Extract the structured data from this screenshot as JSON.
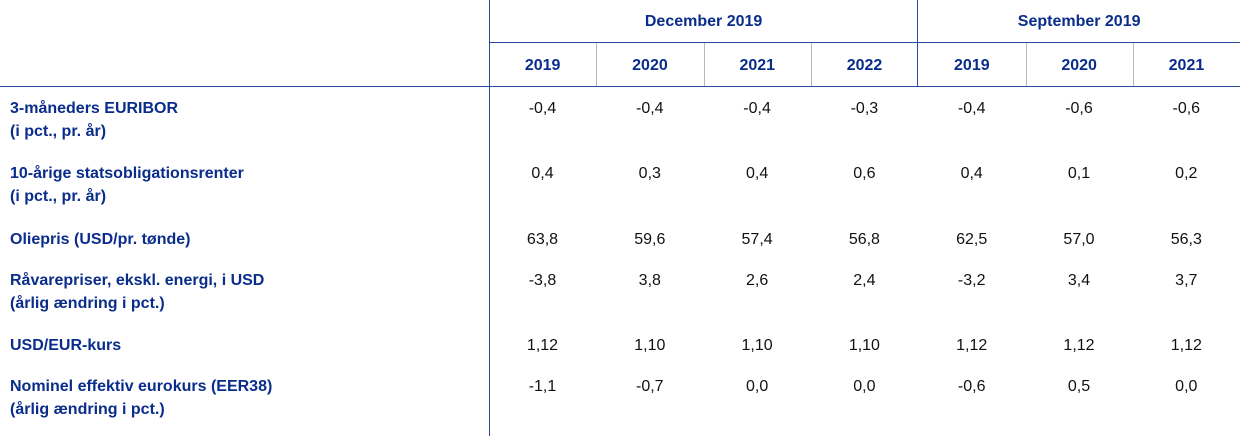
{
  "header": {
    "groups": [
      {
        "label": "December 2019",
        "years": [
          "2019",
          "2020",
          "2021",
          "2022"
        ]
      },
      {
        "label": "September 2019",
        "years": [
          "2019",
          "2020",
          "2021"
        ]
      }
    ]
  },
  "rows": [
    {
      "label": [
        "3-måneders EURIBOR",
        "(i pct., pr. år)"
      ],
      "values": [
        "-0,4",
        "-0,4",
        "-0,4",
        "-0,3",
        "-0,4",
        "-0,6",
        "-0,6"
      ]
    },
    {
      "label": [
        "10-årige statsobligationsrenter",
        "(i pct., pr. år)"
      ],
      "values": [
        "0,4",
        "0,3",
        "0,4",
        "0,6",
        "0,4",
        "0,1",
        "0,2"
      ]
    },
    {
      "label": [
        "Oliepris (USD/pr. tønde)"
      ],
      "values": [
        "63,8",
        "59,6",
        "57,4",
        "56,8",
        "62,5",
        "57,0",
        "56,3"
      ]
    },
    {
      "label": [
        "Råvarepriser, ekskl. energi, i USD",
        "(årlig ændring i pct.)"
      ],
      "values": [
        "-3,8",
        "3,8",
        "2,6",
        "2,4",
        "-3,2",
        "3,4",
        "3,7"
      ]
    },
    {
      "label": [
        "USD/EUR-kurs"
      ],
      "values": [
        "1,12",
        "1,10",
        "1,10",
        "1,10",
        "1,12",
        "1,12",
        "1,12"
      ]
    },
    {
      "label": [
        "Nominel effektiv eurokurs (EER38)",
        "(årlig ændring i pct.)"
      ],
      "values": [
        "-1,1",
        "-0,7",
        "0,0",
        "0,0",
        "-0,6",
        "0,5",
        "0,0"
      ]
    }
  ]
}
